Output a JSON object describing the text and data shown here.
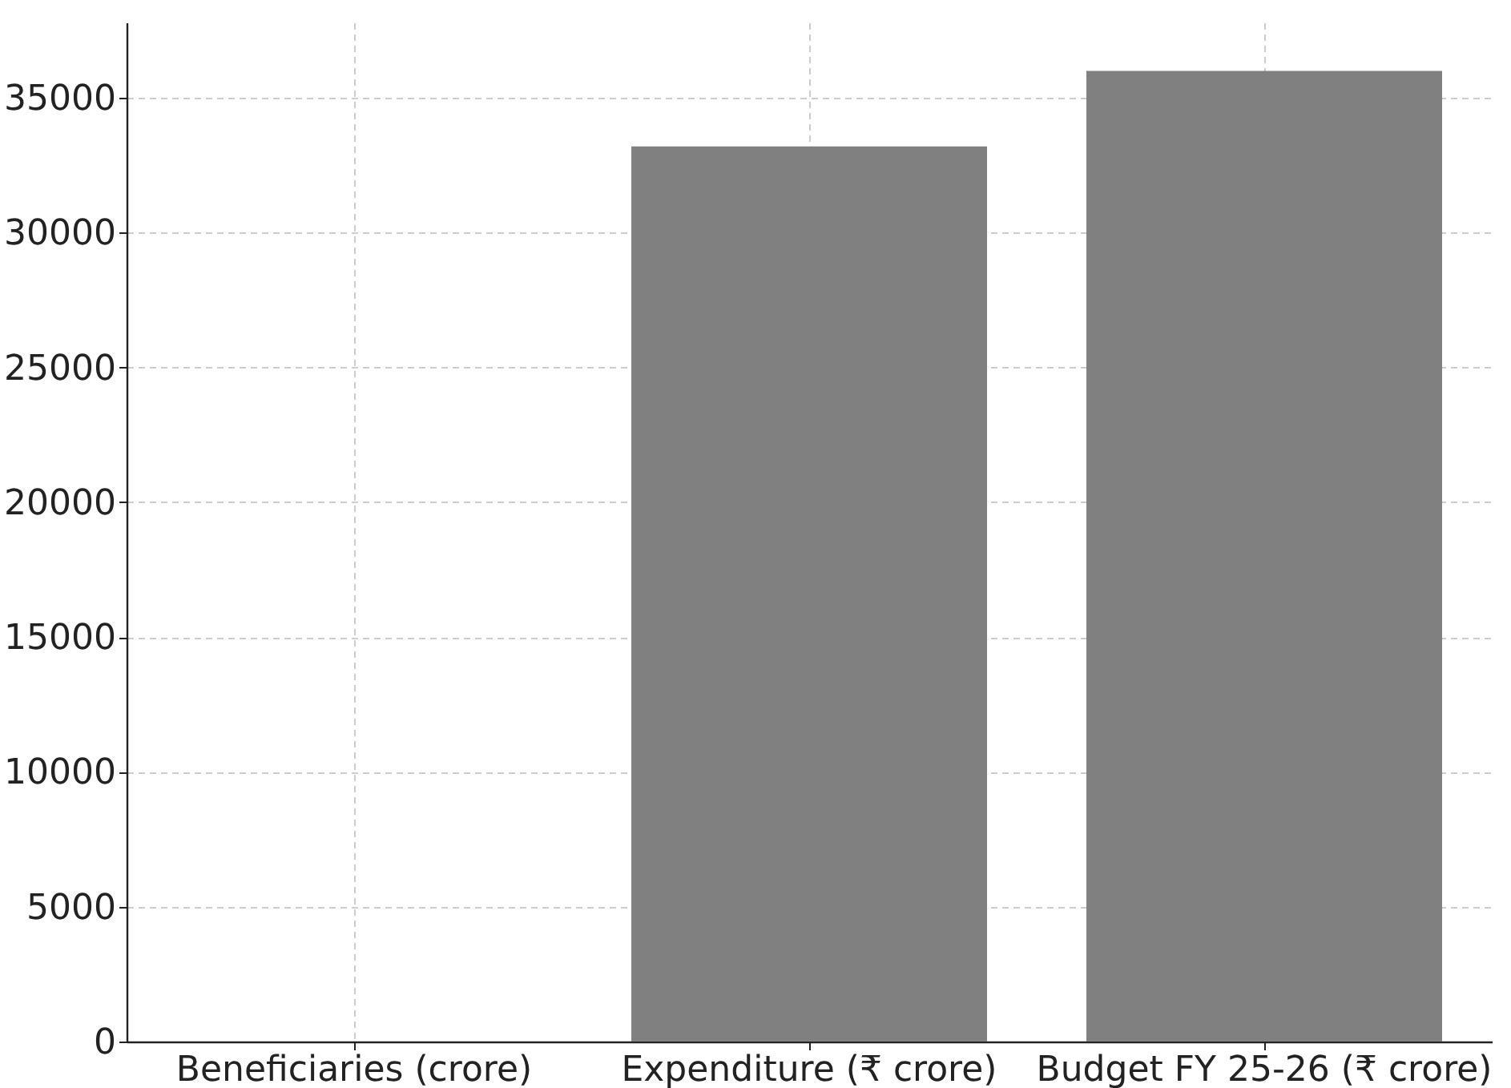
{
  "chart_data": {
    "type": "bar",
    "categories": [
      "Beneficiaries (crore)",
      "Expenditure (₹ crore)",
      "Budget FY 25-26 (₹ crore)"
    ],
    "values": [
      0,
      33200,
      36000
    ],
    "color": "#808080",
    "ylim": [
      0,
      37800
    ],
    "yticks": [
      0,
      5000,
      10000,
      15000,
      20000,
      25000,
      30000,
      35000
    ],
    "grid": true
  }
}
